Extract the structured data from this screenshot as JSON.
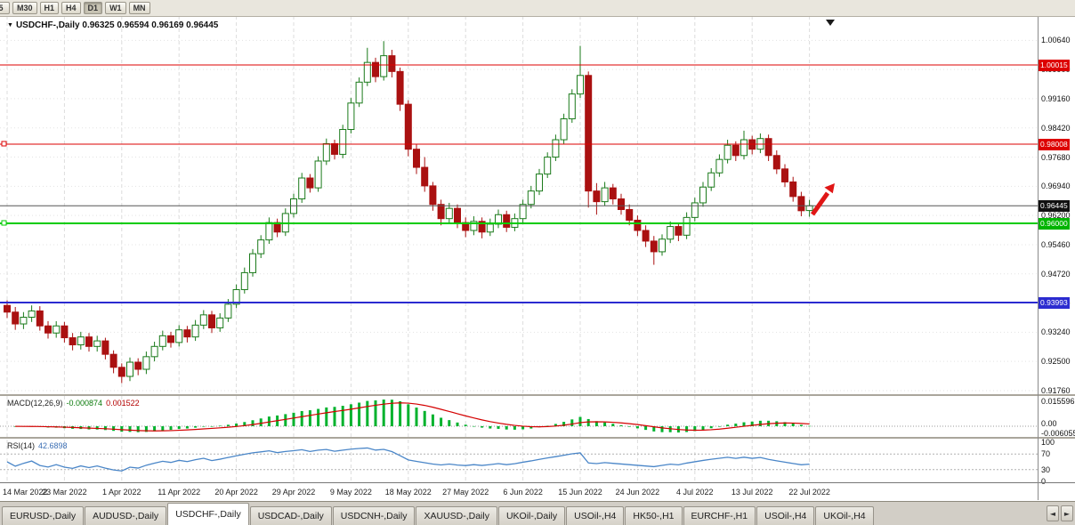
{
  "toolbar": {
    "periods": [
      {
        "label": "5",
        "active": false
      },
      {
        "label": "M30",
        "active": false
      },
      {
        "label": "H1",
        "active": false
      },
      {
        "label": "H4",
        "active": false
      },
      {
        "label": "D1",
        "active": true
      },
      {
        "label": "W1",
        "active": false
      },
      {
        "label": "MN",
        "active": false
      }
    ]
  },
  "chart": {
    "marker_icon": "▼",
    "title": "USDCHF-,Daily",
    "ohlc": "0.96325 0.96594 0.96169 0.96445"
  },
  "chart_data": {
    "type": "candlestick",
    "symbol": "USDCHF-",
    "timeframe": "Daily",
    "open": "0.96325",
    "high": "0.96594",
    "low": "0.96169",
    "close": "0.96445",
    "x_tick_labels": [
      "14 Mar 2022",
      "23 Mar 2022",
      "1 Apr 2022",
      "11 Apr 2022",
      "20 Apr 2022",
      "29 Apr 2022",
      "9 May 2022",
      "18 May 2022",
      "27 May 2022",
      "6 Jun 2022",
      "15 Jun 2022",
      "24 Jun 2022",
      "4 Jul 2022",
      "13 Jul 2022",
      "22 Jul 2022"
    ],
    "candles_per_tick": 7,
    "y_tick_labels": [
      "1.00640",
      "0.99900",
      "0.99160",
      "0.98420",
      "0.97680",
      "0.96940",
      "0.96200",
      "0.95460",
      "0.94720",
      "0.93980",
      "0.93240",
      "0.92500",
      "0.91760"
    ],
    "y_range": [
      "0.91760",
      "1.00640"
    ],
    "grid": true,
    "levels": [
      {
        "price": 1.00015,
        "label": "1.00015",
        "line_color": "#dd0000",
        "badge_bg": "#dd0000",
        "width": 1,
        "handle": false,
        "role": "resistance-line"
      },
      {
        "price": 0.98008,
        "label": "0.98008",
        "line_color": "#dd0000",
        "badge_bg": "#dd0000",
        "width": 1,
        "handle": true,
        "role": "resistance-line"
      },
      {
        "price": 0.96445,
        "label": "0.96445",
        "line_color": "#555555",
        "badge_bg": "#111111",
        "width": 1,
        "handle": false,
        "role": "current-price-line"
      },
      {
        "price": 0.96,
        "label": "0.96000",
        "line_color": "#00cc00",
        "badge_bg": "#00b400",
        "width": 2,
        "handle": true,
        "role": "support-line"
      },
      {
        "price": 0.93993,
        "label": "0.93993",
        "line_color": "#2b2bd0",
        "badge_bg": "#2b2bd0",
        "width": 2,
        "handle": false,
        "role": "support-line"
      }
    ],
    "annotation_arrow": {
      "color": "#e01616",
      "direction": "up-right"
    },
    "candle_colors": {
      "bull_fill": "#ffffff",
      "bull_stroke": "#1a7a1a",
      "bear_fill": "#aa1111",
      "bear_stroke": "#aa1111"
    },
    "candles": [
      [
        0.9392,
        0.9405,
        0.936,
        0.9375
      ],
      [
        0.9375,
        0.9388,
        0.933,
        0.9345
      ],
      [
        0.9345,
        0.9375,
        0.9332,
        0.9362
      ],
      [
        0.9362,
        0.9392,
        0.935,
        0.9378
      ],
      [
        0.9378,
        0.939,
        0.9328,
        0.934
      ],
      [
        0.934,
        0.9352,
        0.9308,
        0.9322
      ],
      [
        0.9322,
        0.9352,
        0.931,
        0.934
      ],
      [
        0.934,
        0.935,
        0.9298,
        0.931
      ],
      [
        0.931,
        0.9322,
        0.9278,
        0.9292
      ],
      [
        0.9292,
        0.9325,
        0.928,
        0.9312
      ],
      [
        0.9312,
        0.9322,
        0.9275,
        0.9288
      ],
      [
        0.9288,
        0.9315,
        0.9275,
        0.9302
      ],
      [
        0.9302,
        0.931,
        0.9255,
        0.9268
      ],
      [
        0.9268,
        0.9278,
        0.922,
        0.9235
      ],
      [
        0.9235,
        0.9245,
        0.9195,
        0.9212
      ],
      [
        0.9212,
        0.926,
        0.92,
        0.9248
      ],
      [
        0.9248,
        0.9258,
        0.9215,
        0.923
      ],
      [
        0.923,
        0.9275,
        0.9218,
        0.9262
      ],
      [
        0.9262,
        0.93,
        0.925,
        0.9288
      ],
      [
        0.9288,
        0.9328,
        0.9278,
        0.9315
      ],
      [
        0.9315,
        0.9325,
        0.9285,
        0.9298
      ],
      [
        0.9298,
        0.9342,
        0.9288,
        0.933
      ],
      [
        0.933,
        0.934,
        0.9298,
        0.9312
      ],
      [
        0.9312,
        0.9355,
        0.9302,
        0.9342
      ],
      [
        0.9342,
        0.938,
        0.9332,
        0.9368
      ],
      [
        0.9368,
        0.9378,
        0.9322,
        0.9335
      ],
      [
        0.9335,
        0.9372,
        0.9325,
        0.936
      ],
      [
        0.936,
        0.9408,
        0.935,
        0.9395
      ],
      [
        0.9395,
        0.9445,
        0.9385,
        0.9432
      ],
      [
        0.9432,
        0.9488,
        0.9422,
        0.9475
      ],
      [
        0.9475,
        0.9535,
        0.9465,
        0.9523
      ],
      [
        0.9523,
        0.957,
        0.9512,
        0.9558
      ],
      [
        0.9558,
        0.9615,
        0.9548,
        0.9602
      ],
      [
        0.9602,
        0.9612,
        0.9565,
        0.9578
      ],
      [
        0.9578,
        0.9638,
        0.9568,
        0.9625
      ],
      [
        0.9625,
        0.9675,
        0.9615,
        0.9662
      ],
      [
        0.9662,
        0.9728,
        0.9652,
        0.9715
      ],
      [
        0.9715,
        0.9725,
        0.9678,
        0.969
      ],
      [
        0.969,
        0.977,
        0.968,
        0.9758
      ],
      [
        0.9758,
        0.9815,
        0.9748,
        0.9802
      ],
      [
        0.9802,
        0.9812,
        0.9762,
        0.9775
      ],
      [
        0.9775,
        0.985,
        0.9765,
        0.9838
      ],
      [
        0.9838,
        0.9918,
        0.9828,
        0.9905
      ],
      [
        0.9905,
        0.997,
        0.9895,
        0.9958
      ],
      [
        0.9958,
        1.0045,
        0.9948,
        1.0008
      ],
      [
        1.0008,
        1.002,
        0.9958,
        0.9972
      ],
      [
        0.9972,
        1.0062,
        0.9962,
        1.0025
      ],
      [
        1.0025,
        1.004,
        0.997,
        0.9985
      ],
      [
        0.9985,
        0.9995,
        0.9885,
        0.9902
      ],
      [
        0.9902,
        0.9912,
        0.977,
        0.9788
      ],
      [
        0.9788,
        0.98,
        0.9725,
        0.9742
      ],
      [
        0.9742,
        0.9768,
        0.968,
        0.9695
      ],
      [
        0.9695,
        0.9705,
        0.9632,
        0.9648
      ],
      [
        0.9648,
        0.966,
        0.9595,
        0.9612
      ],
      [
        0.9612,
        0.9652,
        0.96,
        0.9638
      ],
      [
        0.9638,
        0.9648,
        0.9588,
        0.9602
      ],
      [
        0.9602,
        0.9615,
        0.9565,
        0.9582
      ],
      [
        0.9582,
        0.9618,
        0.957,
        0.9605
      ],
      [
        0.9605,
        0.9615,
        0.9562,
        0.9578
      ],
      [
        0.9578,
        0.9612,
        0.9568,
        0.9598
      ],
      [
        0.9598,
        0.9635,
        0.9588,
        0.9622
      ],
      [
        0.9622,
        0.9632,
        0.9578,
        0.959
      ],
      [
        0.959,
        0.9625,
        0.958,
        0.9612
      ],
      [
        0.9612,
        0.966,
        0.9602,
        0.9648
      ],
      [
        0.9648,
        0.9695,
        0.9638,
        0.9682
      ],
      [
        0.9682,
        0.9738,
        0.9672,
        0.9725
      ],
      [
        0.9725,
        0.978,
        0.9715,
        0.9768
      ],
      [
        0.9768,
        0.9825,
        0.9758,
        0.9812
      ],
      [
        0.9812,
        0.9878,
        0.9802,
        0.9865
      ],
      [
        0.9865,
        0.994,
        0.9855,
        0.9928
      ],
      [
        0.9928,
        1.005,
        0.9918,
        0.9975
      ],
      [
        0.9975,
        0.9985,
        0.964,
        0.9682
      ],
      [
        0.9682,
        0.9702,
        0.9622,
        0.9655
      ],
      [
        0.9655,
        0.9705,
        0.9645,
        0.969
      ],
      [
        0.969,
        0.97,
        0.9648,
        0.9662
      ],
      [
        0.9662,
        0.9675,
        0.9622,
        0.9635
      ],
      [
        0.9635,
        0.9648,
        0.9595,
        0.9608
      ],
      [
        0.9608,
        0.962,
        0.9568,
        0.9582
      ],
      [
        0.9582,
        0.9595,
        0.954,
        0.9555
      ],
      [
        0.9555,
        0.9568,
        0.9495,
        0.9528
      ],
      [
        0.9528,
        0.9572,
        0.9518,
        0.956
      ],
      [
        0.956,
        0.9605,
        0.955,
        0.9592
      ],
      [
        0.9592,
        0.9602,
        0.9555,
        0.957
      ],
      [
        0.957,
        0.9628,
        0.956,
        0.9615
      ],
      [
        0.9615,
        0.9665,
        0.9605,
        0.9652
      ],
      [
        0.9652,
        0.9705,
        0.9642,
        0.9692
      ],
      [
        0.9692,
        0.974,
        0.9682,
        0.9728
      ],
      [
        0.9728,
        0.9775,
        0.9718,
        0.9762
      ],
      [
        0.9762,
        0.9812,
        0.9752,
        0.9798
      ],
      [
        0.9798,
        0.9808,
        0.9758,
        0.9772
      ],
      [
        0.9772,
        0.9835,
        0.9762,
        0.9812
      ],
      [
        0.9812,
        0.9822,
        0.9775,
        0.9788
      ],
      [
        0.9788,
        0.9828,
        0.9778,
        0.9815
      ],
      [
        0.9815,
        0.9825,
        0.9758,
        0.9772
      ],
      [
        0.9772,
        0.9785,
        0.9725,
        0.9738
      ],
      [
        0.9738,
        0.975,
        0.9692,
        0.9705
      ],
      [
        0.9705,
        0.9718,
        0.9655,
        0.9668
      ],
      [
        0.9668,
        0.968,
        0.9618,
        0.9632
      ],
      [
        0.96325,
        0.96594,
        0.96169,
        0.96445
      ]
    ],
    "macd": {
      "label": "MACD(12,26,9)",
      "value_main": "-0.000874",
      "value_signal": "0.001522",
      "params": [
        12,
        26,
        9
      ],
      "axis_labels": [
        "0.015596",
        "0.00",
        "-0.006055"
      ],
      "histogram_color": "#00b22d",
      "signal_color": "#d40000"
    },
    "rsi": {
      "label": "RSI(14)",
      "value": "42.6898",
      "period": 14,
      "levels": [
        70,
        30
      ],
      "axis_labels": [
        "100",
        "70",
        "30",
        "0"
      ],
      "line_color": "#4a86c8"
    }
  },
  "tabs": {
    "items": [
      "EURUSD-,Daily",
      "AUDUSD-,Daily",
      "USDCHF-,Daily",
      "USDCAD-,Daily",
      "USDCNH-,Daily",
      "XAUUSD-,Daily",
      "UKOil-,Daily",
      "USOil-,H4",
      "HK50-,H1",
      "EURCHF-,H1",
      "USOil-,H4",
      "UKOil-,H4"
    ],
    "active_index": 2,
    "left_arrow": "◄",
    "right_arrow": "►"
  }
}
